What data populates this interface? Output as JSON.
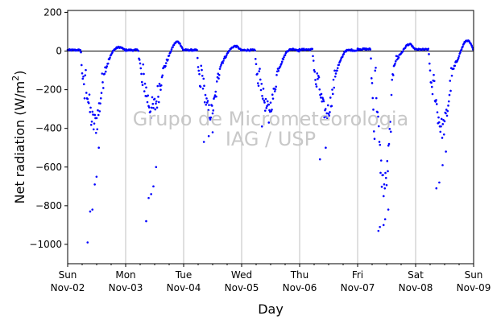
{
  "chart_data": {
    "type": "scatter",
    "title": "",
    "xlabel": "Day",
    "ylabel": "Net radiation (W/m²)",
    "ylim": [
      -1100,
      210
    ],
    "yticks": [
      200,
      0,
      -200,
      -400,
      -600,
      -800,
      -1000
    ],
    "xlim_days": [
      0,
      7
    ],
    "x_day_labels": [
      {
        "weekday": "Sun",
        "date": "Nov-02"
      },
      {
        "weekday": "Mon",
        "date": "Nov-03"
      },
      {
        "weekday": "Tue",
        "date": "Nov-04"
      },
      {
        "weekday": "Wed",
        "date": "Nov-05"
      },
      {
        "weekday": "Thu",
        "date": "Nov-06"
      },
      {
        "weekday": "Fri",
        "date": "Nov-07"
      },
      {
        "weekday": "Sat",
        "date": "Nov-08"
      },
      {
        "weekday": "Sun",
        "date": "Nov-09"
      }
    ],
    "grid": "vertical at day boundaries",
    "zero_line": true,
    "series_color": "#0000ff",
    "watermark_lines": [
      "Grupo de Micrometeorologia",
      "IAG / USP"
    ],
    "days": [
      {
        "date": "Nov-02",
        "night_start": 20,
        "night_end": 5,
        "day_min": -380,
        "peak": -1000,
        "mid": -110,
        "noise": 140,
        "spikes": [
          -990,
          -830,
          -820,
          -690,
          -650,
          -500
        ]
      },
      {
        "date": "Nov-03",
        "night_start": 48,
        "night_end": 5,
        "day_min": -300,
        "peak": -880,
        "mid": -120,
        "noise": 130,
        "spikes": [
          -880,
          -760,
          -740,
          -700,
          -600
        ]
      },
      {
        "date": "Nov-04",
        "night_start": 25,
        "night_end": 5,
        "day_min": -320,
        "peak": -470,
        "mid": -80,
        "noise": 90,
        "spikes": [
          -470,
          -440,
          -420
        ]
      },
      {
        "date": "Nov-05",
        "night_start": 10,
        "night_end": 5,
        "day_min": -300,
        "peak": -400,
        "mid": -100,
        "noise": 80,
        "spikes": [
          -390,
          -370
        ]
      },
      {
        "date": "Nov-06",
        "night_start": 5,
        "night_end": 8,
        "day_min": -320,
        "peak": -560,
        "mid": -110,
        "noise": 90,
        "spikes": [
          -560,
          -500
        ]
      },
      {
        "date": "Nov-07",
        "night_start": 35,
        "night_end": 10,
        "day_min": -700,
        "peak": -930,
        "mid": -60,
        "noise": 150,
        "spikes": [
          -930,
          -910,
          -900,
          -870,
          -820
        ]
      },
      {
        "date": "Nov-08",
        "night_start": 55,
        "night_end": 8,
        "day_min": -400,
        "peak": -710,
        "mid": -120,
        "noise": 110,
        "spikes": [
          -710,
          -680,
          -590,
          -520
        ]
      }
    ]
  }
}
